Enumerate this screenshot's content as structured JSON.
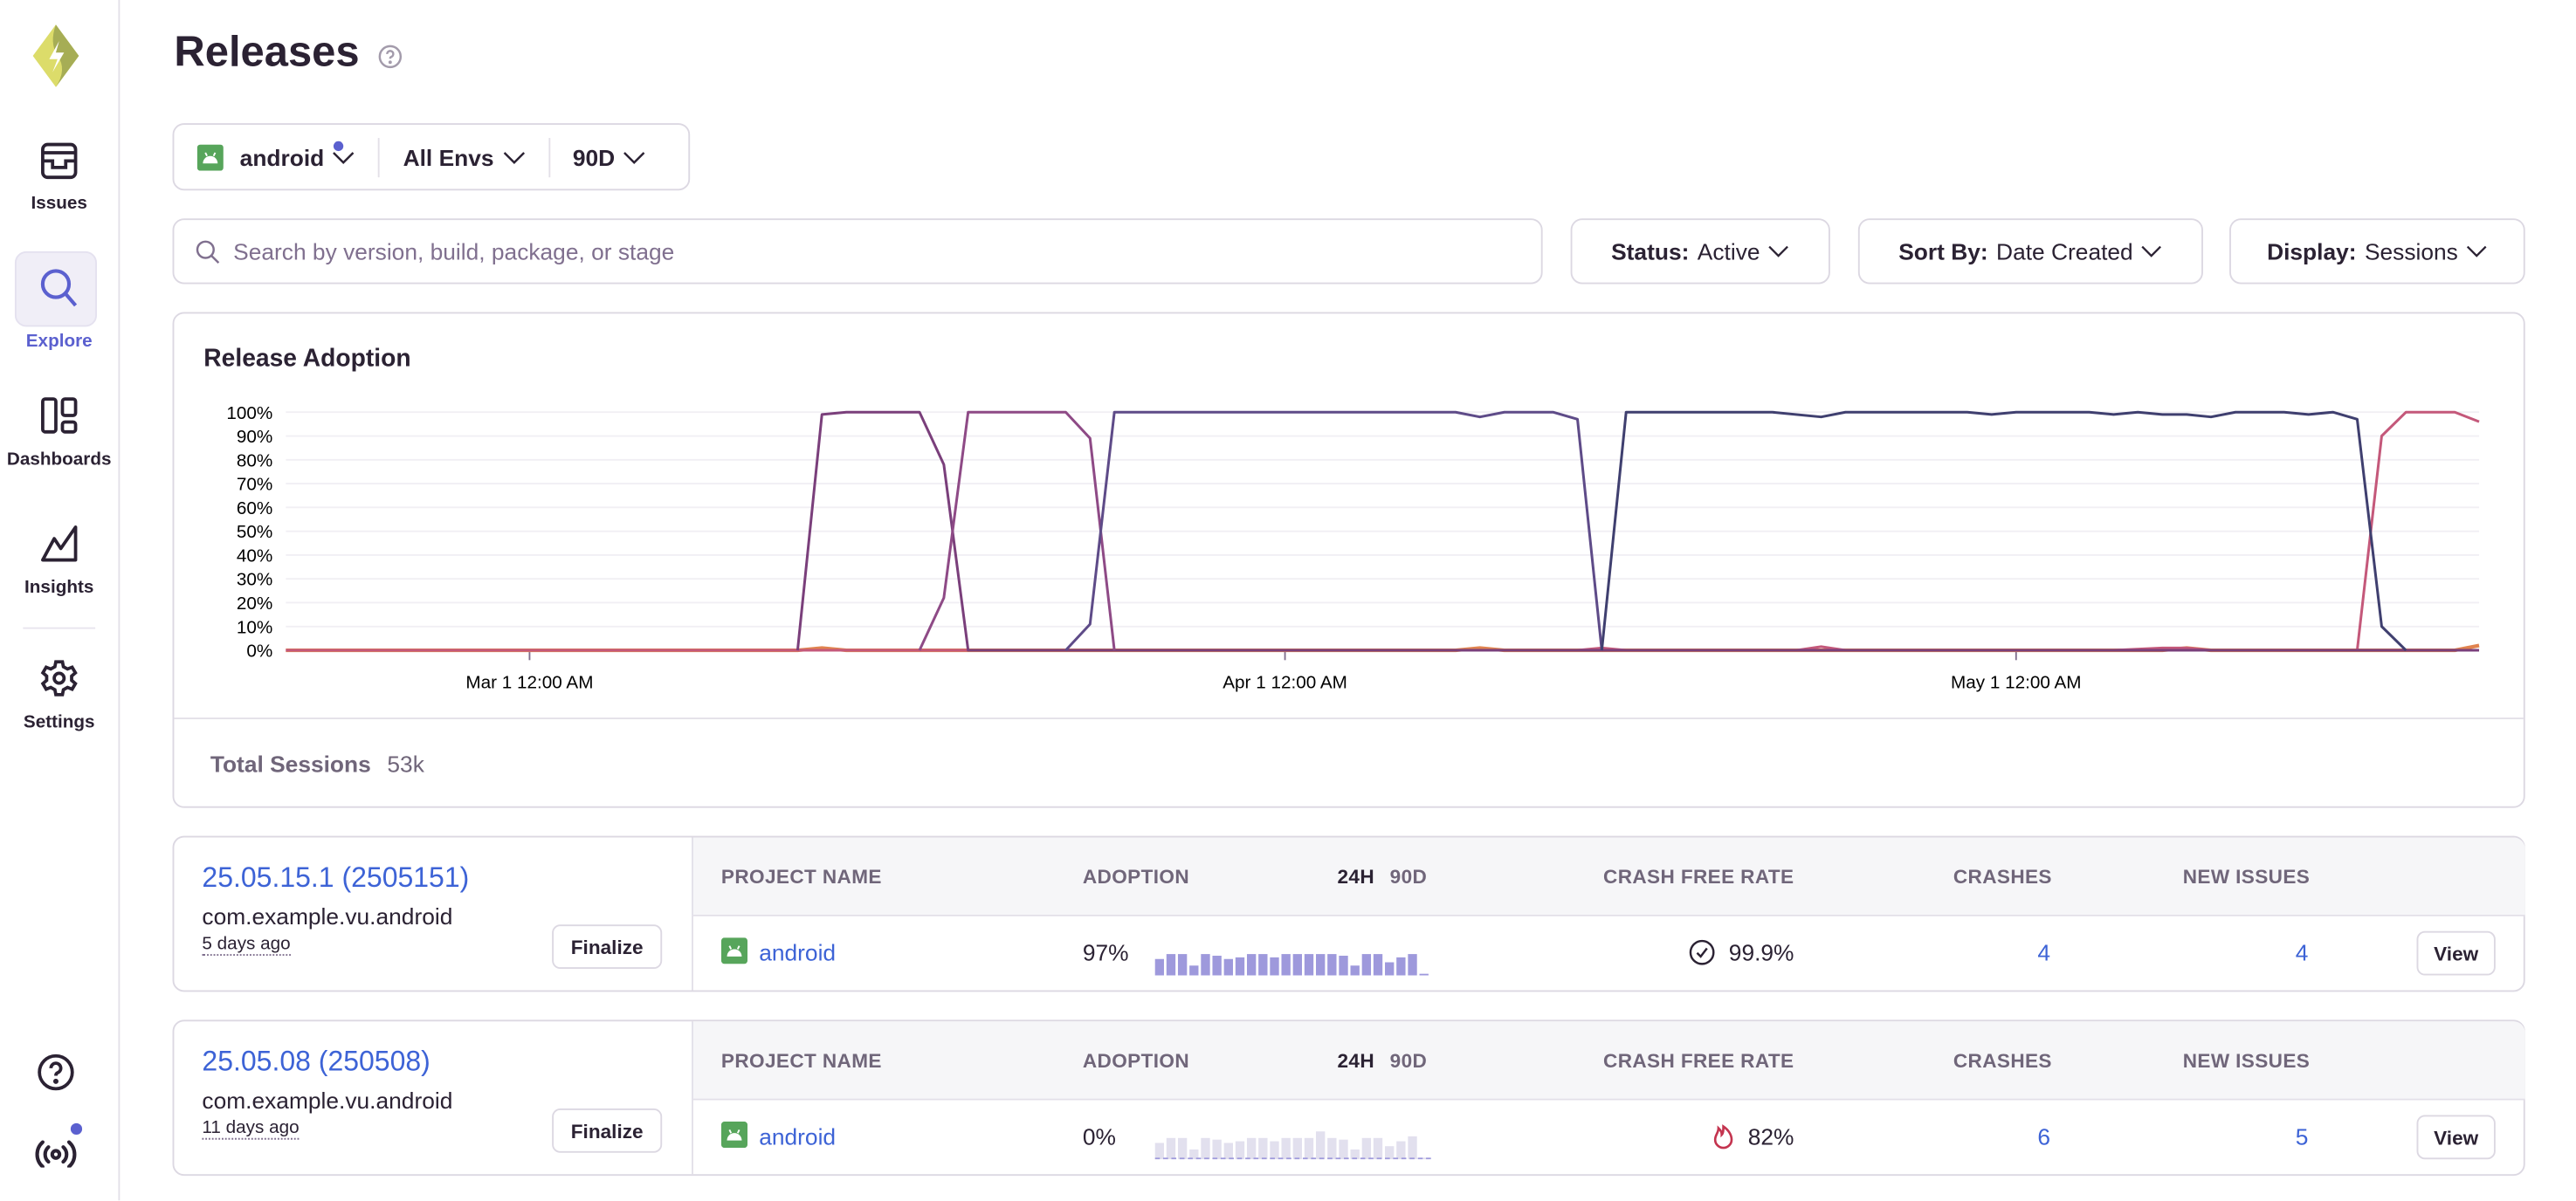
{
  "sidebar": {
    "items": [
      {
        "label": "Issues",
        "icon": "issues-inbox-icon"
      },
      {
        "label": "Explore",
        "icon": "search-icon",
        "active": true
      },
      {
        "label": "Dashboards",
        "icon": "dashboards-icon"
      },
      {
        "label": "Insights",
        "icon": "insights-chart-icon"
      },
      {
        "label": "Settings",
        "icon": "gear-icon"
      }
    ],
    "bottom_icons": [
      "help-icon",
      "broadcast-icon"
    ],
    "accent_color": "#5b60cf"
  },
  "header": {
    "title": "Releases"
  },
  "page_filters": {
    "project": "android",
    "environment": "All Envs",
    "period": "90D"
  },
  "search": {
    "placeholder": "Search by version, build, package, or stage",
    "value": ""
  },
  "controls": {
    "status": {
      "label": "Status:",
      "value": "Active"
    },
    "sort": {
      "label": "Sort By:",
      "value": "Date Created"
    },
    "display": {
      "label": "Display:",
      "value": "Sessions"
    }
  },
  "chart_panel": {
    "title": "Release Adoption",
    "total_label": "Total Sessions",
    "total_value": "53k"
  },
  "chart_data": {
    "type": "line",
    "title": "Release Adoption",
    "x_range": [
      "2025-02-19",
      "2025-05-20"
    ],
    "y_range": [
      0,
      100
    ],
    "y_ticks": [
      "0%",
      "10%",
      "20%",
      "30%",
      "40%",
      "50%",
      "60%",
      "70%",
      "80%",
      "90%",
      "100%"
    ],
    "x_ticks": [
      {
        "date": "2025-03-01",
        "label": "Mar 1 12:00 AM"
      },
      {
        "date": "2025-04-01",
        "label": "Apr 1 12:00 AM"
      },
      {
        "date": "2025-05-01",
        "label": "May 1 12:00 AM"
      }
    ],
    "grid": true,
    "series": [
      {
        "color": "#e0834f",
        "points": [
          [
            "2025-02-19",
            0
          ],
          [
            "2025-03-12",
            0
          ],
          [
            "2025-03-13",
            1
          ],
          [
            "2025-03-14",
            0
          ],
          [
            "2025-04-08",
            0
          ],
          [
            "2025-04-09",
            1
          ],
          [
            "2025-04-10",
            0
          ],
          [
            "2025-05-07",
            0
          ],
          [
            "2025-05-08",
            1
          ],
          [
            "2025-05-09",
            0
          ],
          [
            "2025-05-19",
            0
          ],
          [
            "2025-05-20",
            2
          ]
        ]
      },
      {
        "color": "#c4587a",
        "points": [
          [
            "2025-02-19",
            0
          ],
          [
            "2025-04-13",
            0
          ],
          [
            "2025-04-14",
            1
          ],
          [
            "2025-04-15",
            0
          ],
          [
            "2025-04-22",
            0
          ],
          [
            "2025-04-23",
            1.5
          ],
          [
            "2025-04-24",
            0
          ],
          [
            "2025-05-05",
            0
          ],
          [
            "2025-05-07",
            1
          ],
          [
            "2025-05-08",
            1
          ],
          [
            "2025-05-09",
            0
          ],
          [
            "2025-05-15",
            0
          ],
          [
            "2025-05-16",
            90
          ],
          [
            "2025-05-17",
            100
          ],
          [
            "2025-05-19",
            100
          ],
          [
            "2025-05-20",
            96
          ]
        ]
      },
      {
        "color": "#7a3f7b",
        "points": [
          [
            "2025-03-12",
            0
          ],
          [
            "2025-03-13",
            99
          ],
          [
            "2025-03-14",
            100
          ],
          [
            "2025-03-17",
            100
          ],
          [
            "2025-03-18",
            78
          ],
          [
            "2025-03-19",
            0
          ],
          [
            "2025-05-20",
            0
          ]
        ]
      },
      {
        "color": "#8e4a86",
        "points": [
          [
            "2025-03-17",
            0
          ],
          [
            "2025-03-18",
            22
          ],
          [
            "2025-03-19",
            100
          ],
          [
            "2025-03-23",
            100
          ],
          [
            "2025-03-24",
            89
          ],
          [
            "2025-03-25",
            0
          ]
        ]
      },
      {
        "color": "#5e4b88",
        "points": [
          [
            "2025-03-23",
            0
          ],
          [
            "2025-03-24",
            11
          ],
          [
            "2025-03-25",
            100
          ],
          [
            "2025-04-08",
            100
          ],
          [
            "2025-04-09",
            98
          ],
          [
            "2025-04-10",
            100
          ],
          [
            "2025-04-12",
            100
          ],
          [
            "2025-04-13",
            97
          ],
          [
            "2025-04-14",
            0
          ]
        ]
      },
      {
        "color": "#3f3f6f",
        "points": [
          [
            "2025-04-14",
            0
          ],
          [
            "2025-04-15",
            100
          ],
          [
            "2025-04-21",
            100
          ],
          [
            "2025-04-23",
            98
          ],
          [
            "2025-04-24",
            100
          ],
          [
            "2025-04-29",
            100
          ],
          [
            "2025-04-30",
            99
          ],
          [
            "2025-05-01",
            100
          ],
          [
            "2025-05-04",
            100
          ],
          [
            "2025-05-05",
            99
          ],
          [
            "2025-05-06",
            100
          ],
          [
            "2025-05-07",
            99
          ],
          [
            "2025-05-08",
            99
          ],
          [
            "2025-05-09",
            98
          ],
          [
            "2025-05-10",
            100
          ],
          [
            "2025-05-12",
            100
          ],
          [
            "2025-05-13",
            99
          ],
          [
            "2025-05-14",
            100
          ],
          [
            "2025-05-15",
            97
          ],
          [
            "2025-05-16",
            10
          ],
          [
            "2025-05-17",
            0
          ]
        ]
      }
    ]
  },
  "table_headers": {
    "project": "Project Name",
    "adoption": "Adoption",
    "h24": "24H",
    "d90": "90D",
    "crash_free": "Crash Free Rate",
    "crashes": "Crashes",
    "new_issues": "New Issues"
  },
  "releases": [
    {
      "version": "25.05.15.1 (2505151)",
      "package": "com.example.vu.android",
      "age": "5 days ago",
      "finalize_label": "Finalize",
      "project": "android",
      "adoption": "97%",
      "adoption_active": true,
      "sparkline": [
        0.5,
        0.65,
        0.65,
        0.3,
        0.65,
        0.6,
        0.5,
        0.55,
        0.65,
        0.65,
        0.55,
        0.65,
        0.65,
        0.65,
        0.65,
        0.65,
        0.6,
        0.3,
        0.65,
        0.65,
        0.4,
        0.55,
        0.65,
        0.05
      ],
      "crash_free_rate": "99.9%",
      "crash_icon": "check-circle-icon",
      "crashes": "4",
      "new_issues": "4",
      "view_label": "View"
    },
    {
      "version": "25.05.08 (250508)",
      "package": "com.example.vu.android",
      "age": "11 days ago",
      "finalize_label": "Finalize",
      "project": "android",
      "adoption": "0%",
      "adoption_active": false,
      "sparkline": [
        0.5,
        0.65,
        0.65,
        0.3,
        0.65,
        0.6,
        0.5,
        0.55,
        0.65,
        0.65,
        0.55,
        0.65,
        0.65,
        0.65,
        0.85,
        0.65,
        0.6,
        0.3,
        0.65,
        0.65,
        0.4,
        0.55,
        0.7,
        0.05
      ],
      "crash_free_rate": "82%",
      "crash_icon": "fire-icon",
      "crashes": "6",
      "new_issues": "5",
      "view_label": "View"
    }
  ]
}
